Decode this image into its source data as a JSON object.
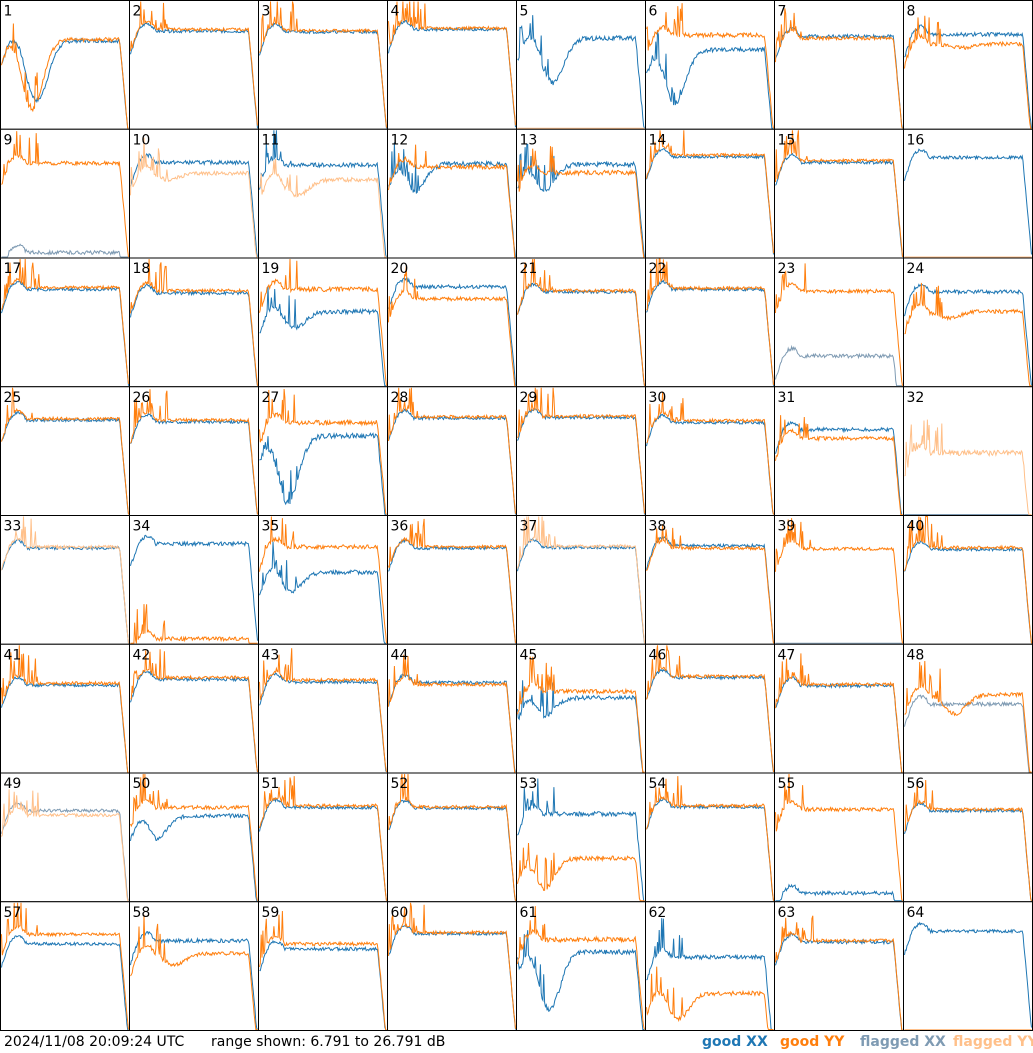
{
  "footer": {
    "timestamp": "2024/11/08 20:09:24 UTC",
    "range_text": "range shown: 6.791 to 26.791 dB"
  },
  "legend": {
    "good_xx": {
      "word": "good",
      "pol": "XX",
      "color": "#1f77b4"
    },
    "good_yy": {
      "word": "good",
      "pol": "YY",
      "color": "#ff7f0e"
    },
    "flagged_xx": {
      "word": "flagged",
      "pol": "XX",
      "color": "#7f9bb3"
    },
    "flagged_yy": {
      "word": "flagged",
      "pol": "YY",
      "color": "#ffc08a"
    }
  },
  "chart_data": {
    "type": "line",
    "unit": "dB",
    "ylim": [
      6.791,
      26.791
    ],
    "panel_labels": [
      "1",
      "2",
      "3",
      "4",
      "5",
      "6",
      "7",
      "8",
      "9",
      "10",
      "11",
      "12",
      "13",
      "14",
      "15",
      "16",
      "17",
      "18",
      "19",
      "20",
      "21",
      "22",
      "23",
      "24",
      "25",
      "26",
      "27",
      "28",
      "29",
      "30",
      "31",
      "32",
      "33",
      "34",
      "35",
      "36",
      "37",
      "38",
      "39",
      "40",
      "41",
      "42",
      "43",
      "44",
      "45",
      "46",
      "47",
      "48",
      "49",
      "50",
      "51",
      "52",
      "53",
      "54",
      "55",
      "56",
      "57",
      "58",
      "59",
      "60",
      "61",
      "62",
      "63",
      "64"
    ],
    "series_note": "per panel: XX and YY spectra, good or flagged",
    "panels": [
      {
        "id": 1,
        "xx": "good",
        "yy": "good",
        "xx_level": 20.6,
        "yy_level": 20.8,
        "xx_dip": [
          0.28,
          11.2
        ],
        "yy_dip": [
          0.24,
          9.8
        ],
        "noise": 1.0
      },
      {
        "id": 2,
        "xx": "good",
        "yy": "good",
        "xx_level": 22.1,
        "yy_level": 22.4,
        "noise": 0.8
      },
      {
        "id": 3,
        "xx": "good",
        "yy": "good",
        "xx_level": 22.0,
        "yy_level": 22.2,
        "noise": 0.8
      },
      {
        "id": 4,
        "xx": "good",
        "yy": "good",
        "xx_level": 22.4,
        "yy_level": 22.6,
        "noise": 0.8
      },
      {
        "id": 5,
        "xx": "good",
        "yy": "flagged",
        "xx_level": 21.0,
        "yy_level": 6.8,
        "xx_dip": [
          0.28,
          14.0
        ],
        "noise": 1.3
      },
      {
        "id": 6,
        "xx": "good",
        "yy": "good",
        "xx_level": 19.2,
        "yy_level": 21.5,
        "xx_dip": [
          0.22,
          10.5
        ],
        "noise": 1.2
      },
      {
        "id": 7,
        "xx": "good",
        "yy": "good",
        "xx_level": 21.3,
        "yy_level": 21.0,
        "noise": 0.9
      },
      {
        "id": 8,
        "xx": "good",
        "yy": "good",
        "xx_level": 21.6,
        "yy_level": 20.1,
        "yy_dip": [
          0.45,
          19.5
        ],
        "noise": 1.0
      },
      {
        "id": 9,
        "xx": "flagged",
        "yy": "good",
        "xx_level": 7.5,
        "yy_level": 21.6,
        "noise": 1.0
      },
      {
        "id": 10,
        "xx": "good",
        "yy": "flagged",
        "xx_level": 21.7,
        "yy_level": 20.0,
        "yy_dip": [
          0.3,
          19.0
        ],
        "noise": 1.0
      },
      {
        "id": 11,
        "xx": "good",
        "yy": "flagged",
        "xx_level": 21.3,
        "yy_level": 19.0,
        "yy_dip": [
          0.3,
          16.5
        ],
        "noise": 1.1
      },
      {
        "id": 12,
        "xx": "good",
        "yy": "good",
        "xx_level": 21.5,
        "yy_level": 21.0,
        "xx_dip": [
          0.2,
          17.0
        ],
        "noise": 1.2
      },
      {
        "id": 13,
        "xx": "good",
        "yy": "good",
        "xx_level": 21.4,
        "yy_level": 20.1,
        "xx_dip": [
          0.2,
          17.0
        ],
        "noise": 1.2
      },
      {
        "id": 14,
        "xx": "good",
        "yy": "good",
        "xx_level": 22.6,
        "yy_level": 22.9,
        "noise": 0.7
      },
      {
        "id": 15,
        "xx": "good",
        "yy": "good",
        "xx_level": 21.7,
        "yy_level": 22.0,
        "noise": 0.8
      },
      {
        "id": 16,
        "xx": "good",
        "yy": "flagged",
        "xx_level": 22.5,
        "yy_level": 6.8,
        "noise": 0.8
      },
      {
        "id": 17,
        "xx": "good",
        "yy": "good",
        "xx_level": 22.0,
        "yy_level": 22.3,
        "noise": 0.8
      },
      {
        "id": 18,
        "xx": "good",
        "yy": "good",
        "xx_level": 21.4,
        "yy_level": 21.8,
        "noise": 0.8
      },
      {
        "id": 19,
        "xx": "good",
        "yy": "good",
        "xx_level": 18.5,
        "yy_level": 22.0,
        "xx_dip": [
          0.28,
          16.0
        ],
        "noise": 1.2
      },
      {
        "id": 20,
        "xx": "good",
        "yy": "good",
        "xx_level": 22.4,
        "yy_level": 20.5,
        "noise": 1.0
      },
      {
        "id": 21,
        "xx": "good",
        "yy": "good",
        "xx_level": 21.6,
        "yy_level": 21.8,
        "noise": 0.8
      },
      {
        "id": 22,
        "xx": "good",
        "yy": "good",
        "xx_level": 22.0,
        "yy_level": 22.2,
        "noise": 0.8
      },
      {
        "id": 23,
        "xx": "flagged",
        "yy": "good",
        "xx_level": 11.5,
        "yy_level": 21.7,
        "noise": 1.0
      },
      {
        "id": 24,
        "xx": "good",
        "yy": "good",
        "xx_level": 21.6,
        "yy_level": 18.5,
        "yy_dip": [
          0.35,
          17.5
        ],
        "noise": 1.0
      },
      {
        "id": 25,
        "xx": "good",
        "yy": "good",
        "xx_level": 21.7,
        "yy_level": 21.9,
        "noise": 0.8
      },
      {
        "id": 26,
        "xx": "good",
        "yy": "good",
        "xx_level": 21.4,
        "yy_level": 21.7,
        "noise": 0.8
      },
      {
        "id": 27,
        "xx": "good",
        "yy": "good",
        "xx_level": 19.2,
        "yy_level": 21.3,
        "xx_dip": [
          0.22,
          8.5
        ],
        "noise": 1.3
      },
      {
        "id": 28,
        "xx": "good",
        "yy": "good",
        "xx_level": 22.0,
        "yy_level": 22.2,
        "noise": 0.8
      },
      {
        "id": 29,
        "xx": "good",
        "yy": "good",
        "xx_level": 22.1,
        "yy_level": 22.3,
        "noise": 0.8
      },
      {
        "id": 30,
        "xx": "good",
        "yy": "good",
        "xx_level": 21.3,
        "yy_level": 21.6,
        "noise": 0.8
      },
      {
        "id": 31,
        "xx": "good",
        "yy": "good",
        "xx_level": 20.2,
        "yy_level": 18.8,
        "noise": 1.0
      },
      {
        "id": 32,
        "xx": "flagged",
        "yy": "flagged",
        "xx_level": 6.8,
        "yy_level": 16.5,
        "noise": 1.4
      },
      {
        "id": 33,
        "xx": "good",
        "yy": "flagged",
        "xx_level": 21.8,
        "yy_level": 22.0,
        "noise": 0.8
      },
      {
        "id": 34,
        "xx": "good",
        "yy": "good",
        "xx_level": 22.5,
        "yy_level": 7.5,
        "noise": 1.0
      },
      {
        "id": 35,
        "xx": "good",
        "yy": "good",
        "xx_level": 18.0,
        "yy_level": 22.0,
        "xx_dip": [
          0.25,
          15.0
        ],
        "noise": 1.1
      },
      {
        "id": 36,
        "xx": "good",
        "yy": "good",
        "xx_level": 21.8,
        "yy_level": 22.0,
        "noise": 0.8
      },
      {
        "id": 37,
        "xx": "good",
        "yy": "flagged",
        "xx_level": 21.9,
        "yy_level": 22.1,
        "noise": 0.8
      },
      {
        "id": 38,
        "xx": "good",
        "yy": "good",
        "xx_level": 22.2,
        "yy_level": 21.8,
        "noise": 0.8
      },
      {
        "id": 39,
        "xx": "flagged",
        "yy": "good",
        "xx_level": 6.8,
        "yy_level": 21.7,
        "noise": 0.8
      },
      {
        "id": 40,
        "xx": "good",
        "yy": "good",
        "xx_level": 21.6,
        "yy_level": 21.9,
        "noise": 0.8
      },
      {
        "id": 41,
        "xx": "good",
        "yy": "good",
        "xx_level": 20.5,
        "yy_level": 20.8,
        "noise": 0.8
      },
      {
        "id": 42,
        "xx": "good",
        "yy": "good",
        "xx_level": 21.4,
        "yy_level": 21.7,
        "noise": 0.8
      },
      {
        "id": 43,
        "xx": "good",
        "yy": "good",
        "xx_level": 21.0,
        "yy_level": 21.3,
        "noise": 0.8
      },
      {
        "id": 44,
        "xx": "good",
        "yy": "good",
        "xx_level": 20.9,
        "yy_level": 20.6,
        "noise": 0.9
      },
      {
        "id": 45,
        "xx": "good",
        "yy": "good",
        "xx_level": 18.5,
        "yy_level": 19.5,
        "xx_dip": [
          0.2,
          15.5
        ],
        "noise": 1.1
      },
      {
        "id": 46,
        "xx": "good",
        "yy": "good",
        "xx_level": 21.7,
        "yy_level": 21.9,
        "noise": 0.8
      },
      {
        "id": 47,
        "xx": "good",
        "yy": "good",
        "xx_level": 20.4,
        "yy_level": 20.6,
        "noise": 0.9
      },
      {
        "id": 48,
        "xx": "flagged",
        "yy": "good",
        "xx_level": 17.5,
        "yy_level": 19.0,
        "yy_dip": [
          0.4,
          16.0
        ],
        "noise": 1.0
      },
      {
        "id": 49,
        "xx": "flagged",
        "yy": "flagged",
        "xx_level": 21.0,
        "yy_level": 20.3,
        "noise": 0.8
      },
      {
        "id": 50,
        "xx": "good",
        "yy": "good",
        "xx_level": 20.2,
        "yy_level": 21.5,
        "xx_dip": [
          0.2,
          16.5
        ],
        "noise": 1.0
      },
      {
        "id": 51,
        "xx": "good",
        "yy": "good",
        "xx_level": 21.5,
        "yy_level": 21.8,
        "noise": 0.8
      },
      {
        "id": 52,
        "xx": "good",
        "yy": "good",
        "xx_level": 21.4,
        "yy_level": 21.6,
        "noise": 0.8
      },
      {
        "id": 53,
        "xx": "good",
        "yy": "good",
        "xx_level": 20.5,
        "yy_level": 13.5,
        "yy_dip": [
          0.2,
          8.5
        ],
        "noise": 1.2
      },
      {
        "id": 54,
        "xx": "good",
        "yy": "good",
        "xx_level": 21.6,
        "yy_level": 21.8,
        "noise": 0.8
      },
      {
        "id": 55,
        "xx": "good",
        "yy": "good",
        "xx_level": 8.0,
        "yy_level": 21.2,
        "noise": 1.0
      },
      {
        "id": 56,
        "xx": "good",
        "yy": "good",
        "xx_level": 21.0,
        "yy_level": 21.2,
        "noise": 0.8
      },
      {
        "id": 57,
        "xx": "good",
        "yy": "good",
        "xx_level": 20.3,
        "yy_level": 21.8,
        "noise": 0.8
      },
      {
        "id": 58,
        "xx": "good",
        "yy": "good",
        "xx_level": 20.8,
        "yy_level": 18.8,
        "yy_dip": [
          0.35,
          17.0
        ],
        "noise": 1.0
      },
      {
        "id": 59,
        "xx": "good",
        "yy": "good",
        "xx_level": 19.5,
        "yy_level": 20.3,
        "noise": 0.9
      },
      {
        "id": 60,
        "xx": "good",
        "yy": "good",
        "xx_level": 21.9,
        "yy_level": 22.1,
        "noise": 0.8
      },
      {
        "id": 61,
        "xx": "good",
        "yy": "good",
        "xx_level": 19.0,
        "yy_level": 21.0,
        "xx_dip": [
          0.25,
          10.0
        ],
        "noise": 1.3
      },
      {
        "id": 62,
        "xx": "good",
        "yy": "good",
        "xx_level": 18.2,
        "yy_level": 12.5,
        "yy_dip": [
          0.25,
          8.5
        ],
        "noise": 1.1
      },
      {
        "id": 63,
        "xx": "good",
        "yy": "good",
        "xx_level": 20.6,
        "yy_level": 20.8,
        "noise": 0.9
      },
      {
        "id": 64,
        "xx": "good",
        "yy": "flagged",
        "xx_level": 22.3,
        "yy_level": 6.8,
        "noise": 0.8
      }
    ]
  }
}
